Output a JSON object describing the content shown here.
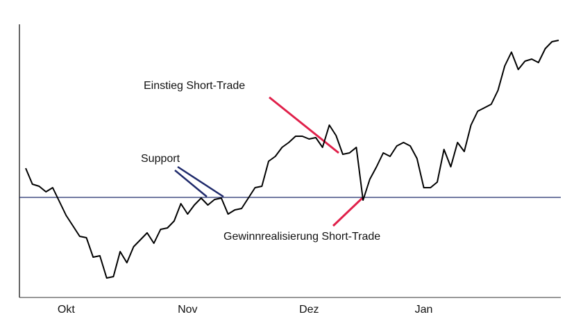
{
  "chart_data": {
    "type": "line",
    "categories": [
      null,
      null,
      null,
      null,
      null,
      null,
      "Okt",
      null,
      null,
      null,
      null,
      null,
      null,
      null,
      null,
      null,
      null,
      null,
      null,
      null,
      null,
      null,
      null,
      null,
      "Nov",
      null,
      null,
      null,
      null,
      null,
      null,
      null,
      null,
      null,
      null,
      null,
      null,
      null,
      null,
      null,
      null,
      null,
      "Dez",
      null,
      null,
      null,
      null,
      null,
      null,
      null,
      null,
      null,
      null,
      null,
      null,
      null,
      null,
      null,
      null,
      "Jan",
      null,
      null,
      null,
      null,
      null,
      null,
      null,
      null,
      null,
      null,
      null,
      null,
      null,
      null,
      null,
      null,
      null,
      null,
      null,
      null
    ],
    "values": [
      186,
      163,
      160,
      152,
      158,
      138,
      118,
      103,
      88,
      86,
      58,
      60,
      28,
      30,
      66,
      50,
      73,
      83,
      93,
      78,
      98,
      100,
      110,
      135,
      120,
      133,
      143,
      133,
      141,
      143,
      120,
      126,
      128,
      143,
      158,
      160,
      196,
      203,
      216,
      223,
      232,
      232,
      228,
      230,
      216,
      248,
      233,
      206,
      208,
      216,
      140,
      170,
      188,
      208,
      203,
      218,
      223,
      218,
      200,
      158,
      158,
      166,
      213,
      188,
      223,
      210,
      248,
      268,
      273,
      278,
      298,
      333,
      353,
      328,
      340,
      343,
      338,
      358,
      368,
      370
    ],
    "color": "#000000",
    "ylim": [
      0,
      400
    ],
    "support_level": 144,
    "support_color": "#1f2a6b",
    "annotations": [
      "Support",
      "Einstieg Short-Trade",
      "Gewinnrealisierung Short-Trade"
    ]
  }
}
